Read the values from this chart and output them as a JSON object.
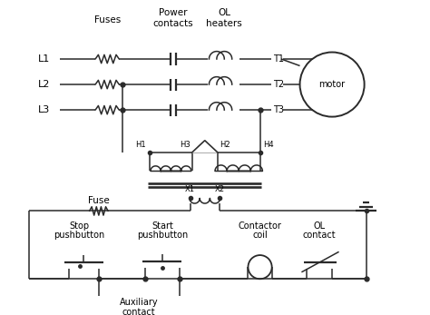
{
  "bg_color": "#ffffff",
  "line_color": "#2a2a2a",
  "text_color": "#000000",
  "figsize": [
    4.74,
    3.47
  ],
  "dpi": 100,
  "lw": 1.1,
  "xlim": [
    0,
    474
  ],
  "ylim": [
    0,
    347
  ]
}
